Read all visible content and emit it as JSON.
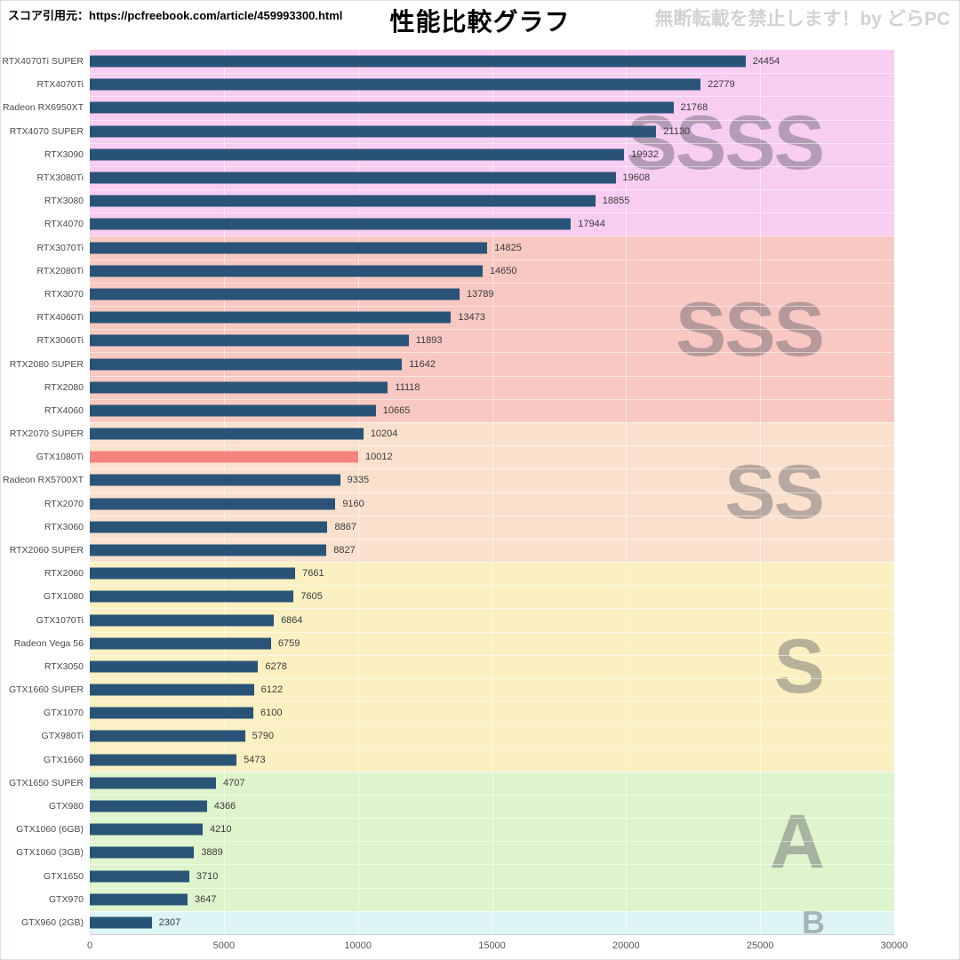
{
  "header": {
    "source_label": "スコア引用元：https://pcfreebook.com/article/459993300.html",
    "title": "性能比較グラフ",
    "watermark": "無断転載を禁止します！by どらPC"
  },
  "chart_data": {
    "type": "bar",
    "orientation": "horizontal",
    "title": "性能比較グラフ",
    "xlabel": "",
    "ylabel": "",
    "xlim": [
      0,
      30000
    ],
    "x_ticks": [
      0,
      5000,
      10000,
      15000,
      20000,
      25000,
      30000
    ],
    "grid": true,
    "bar_color": "#2a5477",
    "highlight_bar_color": "#f5847e",
    "tier_letter_color": "rgba(82,82,96,0.40)",
    "tiers": [
      {
        "label": "SSSS",
        "color": "#f7cdf1",
        "rows": 8
      },
      {
        "label": "SSS",
        "color": "#f8c8c2",
        "rows": 8
      },
      {
        "label": "SS",
        "color": "#fae1ce",
        "rows": 6
      },
      {
        "label": "S",
        "color": "#faf0c2",
        "rows": 9
      },
      {
        "label": "A",
        "color": "#ddf4cc",
        "rows": 6
      },
      {
        "label": "B",
        "color": "#ddf5f5",
        "rows": 1
      }
    ],
    "items": [
      {
        "label": "RTX4070Ti SUPER",
        "value": 24454,
        "tier": "SSSS"
      },
      {
        "label": "RTX4070Ti",
        "value": 22779,
        "tier": "SSSS"
      },
      {
        "label": "Radeon RX6950XT",
        "value": 21768,
        "tier": "SSSS"
      },
      {
        "label": "RTX4070 SUPER",
        "value": 21130,
        "tier": "SSSS"
      },
      {
        "label": "RTX3090",
        "value": 19932,
        "tier": "SSSS"
      },
      {
        "label": "RTX3080Ti",
        "value": 19608,
        "tier": "SSSS"
      },
      {
        "label": "RTX3080",
        "value": 18855,
        "tier": "SSSS"
      },
      {
        "label": "RTX4070",
        "value": 17944,
        "tier": "SSSS"
      },
      {
        "label": "RTX3070Ti",
        "value": 14825,
        "tier": "SSS"
      },
      {
        "label": "RTX2080Ti",
        "value": 14650,
        "tier": "SSS"
      },
      {
        "label": "RTX3070",
        "value": 13789,
        "tier": "SSS"
      },
      {
        "label": "RTX4060Ti",
        "value": 13473,
        "tier": "SSS"
      },
      {
        "label": "RTX3060Ti",
        "value": 11893,
        "tier": "SSS"
      },
      {
        "label": "RTX2080 SUPER",
        "value": 11642,
        "tier": "SSS"
      },
      {
        "label": "RTX2080",
        "value": 11118,
        "tier": "SSS"
      },
      {
        "label": "RTX4060",
        "value": 10665,
        "tier": "SSS"
      },
      {
        "label": "RTX2070 SUPER",
        "value": 10204,
        "tier": "SS"
      },
      {
        "label": "GTX1080Ti",
        "value": 10012,
        "tier": "SS",
        "highlight": true
      },
      {
        "label": "Radeon RX5700XT",
        "value": 9335,
        "tier": "SS"
      },
      {
        "label": "RTX2070",
        "value": 9160,
        "tier": "SS"
      },
      {
        "label": "RTX3060",
        "value": 8867,
        "tier": "SS"
      },
      {
        "label": "RTX2060 SUPER",
        "value": 8827,
        "tier": "SS"
      },
      {
        "label": "RTX2060",
        "value": 7661,
        "tier": "S"
      },
      {
        "label": "GTX1080",
        "value": 7605,
        "tier": "S"
      },
      {
        "label": "GTX1070Ti",
        "value": 6864,
        "tier": "S"
      },
      {
        "label": "Radeon Vega 56",
        "value": 6759,
        "tier": "S"
      },
      {
        "label": "RTX3050",
        "value": 6278,
        "tier": "S"
      },
      {
        "label": "GTX1660 SUPER",
        "value": 6122,
        "tier": "S"
      },
      {
        "label": "GTX1070",
        "value": 6100,
        "tier": "S"
      },
      {
        "label": "GTX980Ti",
        "value": 5790,
        "tier": "S"
      },
      {
        "label": "GTX1660",
        "value": 5473,
        "tier": "S"
      },
      {
        "label": "GTX1650 SUPER",
        "value": 4707,
        "tier": "A"
      },
      {
        "label": "GTX980",
        "value": 4366,
        "tier": "A"
      },
      {
        "label": "GTX1060 (6GB)",
        "value": 4210,
        "tier": "A"
      },
      {
        "label": "GTX1060 (3GB)",
        "value": 3889,
        "tier": "A"
      },
      {
        "label": "GTX1650",
        "value": 3710,
        "tier": "A"
      },
      {
        "label": "GTX970",
        "value": 3647,
        "tier": "A"
      },
      {
        "label": "GTX960 (2GB)",
        "value": 2307,
        "tier": "B"
      }
    ]
  }
}
